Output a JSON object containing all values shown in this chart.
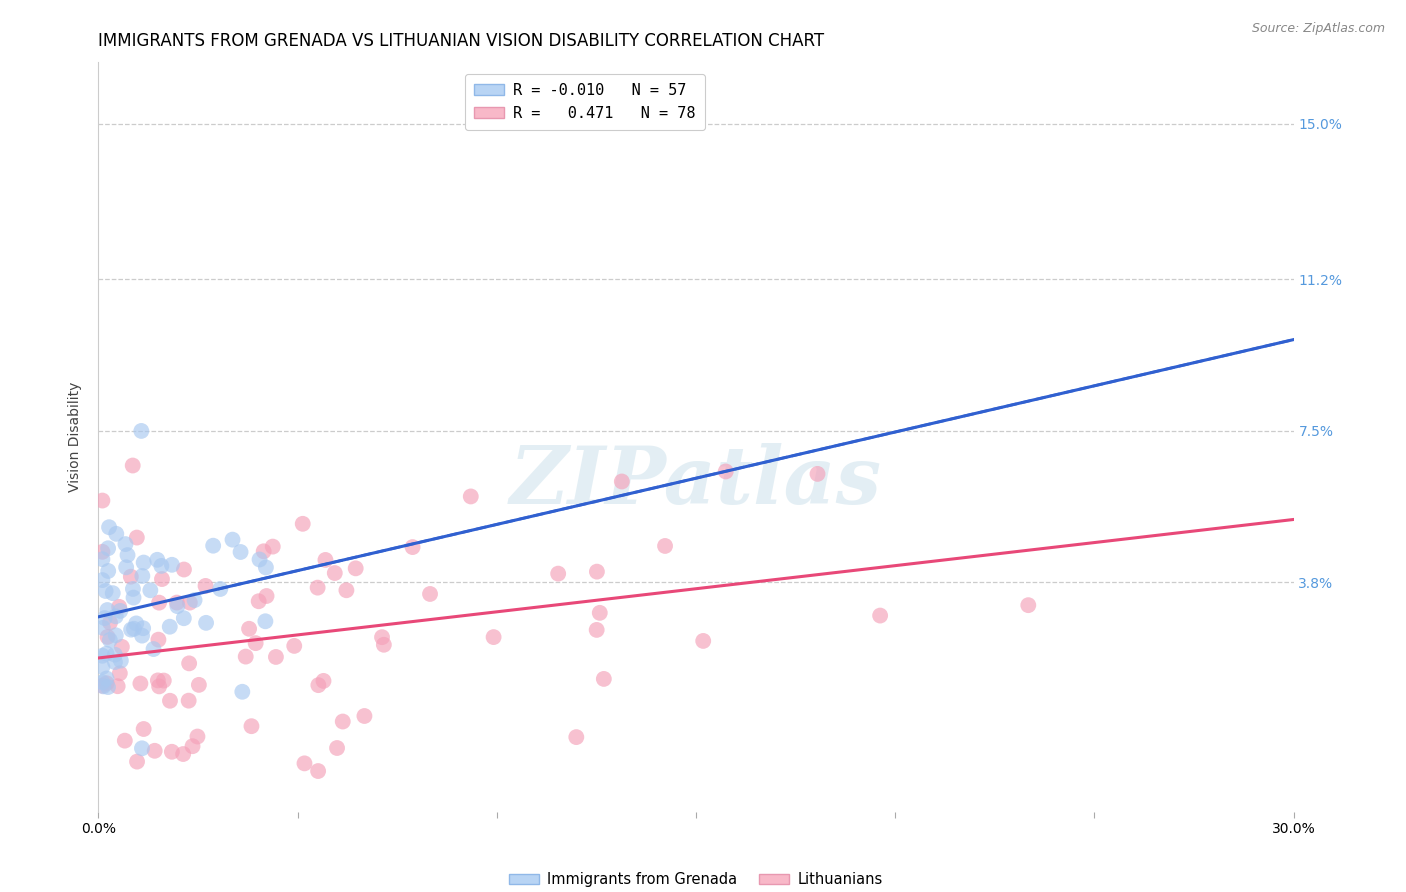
{
  "title": "IMMIGRANTS FROM GRENADA VS LITHUANIAN VISION DISABILITY CORRELATION CHART",
  "source": "Source: ZipAtlas.com",
  "ylabel": "Vision Disability",
  "xlim": [
    0.0,
    0.3
  ],
  "ylim": [
    -0.018,
    0.165
  ],
  "yticks": [
    0.038,
    0.075,
    0.112,
    0.15
  ],
  "ytick_labels": [
    "3.8%",
    "7.5%",
    "11.2%",
    "15.0%"
  ],
  "xticks": [
    0.0,
    0.05,
    0.1,
    0.15,
    0.2,
    0.25,
    0.3
  ],
  "xtick_labels": [
    "0.0%",
    "",
    "",
    "",
    "",
    "",
    "30.0%"
  ],
  "blue_scatter_color": "#a8c8f0",
  "pink_scatter_color": "#f4a0b8",
  "blue_line_color": "#3060d0",
  "pink_line_color": "#e84878",
  "watermark": "ZIPatlas",
  "title_fontsize": 12,
  "axis_label_fontsize": 10,
  "tick_fontsize": 10,
  "right_tick_color": "#5599dd",
  "grid_color": "#cccccc",
  "background_color": "#ffffff",
  "legend_blue_label": "R = -0.010   N = 57",
  "legend_pink_label": "R =   0.471   N = 78",
  "bottom_label1": "Immigrants from Grenada",
  "bottom_label2": "Lithuanians"
}
